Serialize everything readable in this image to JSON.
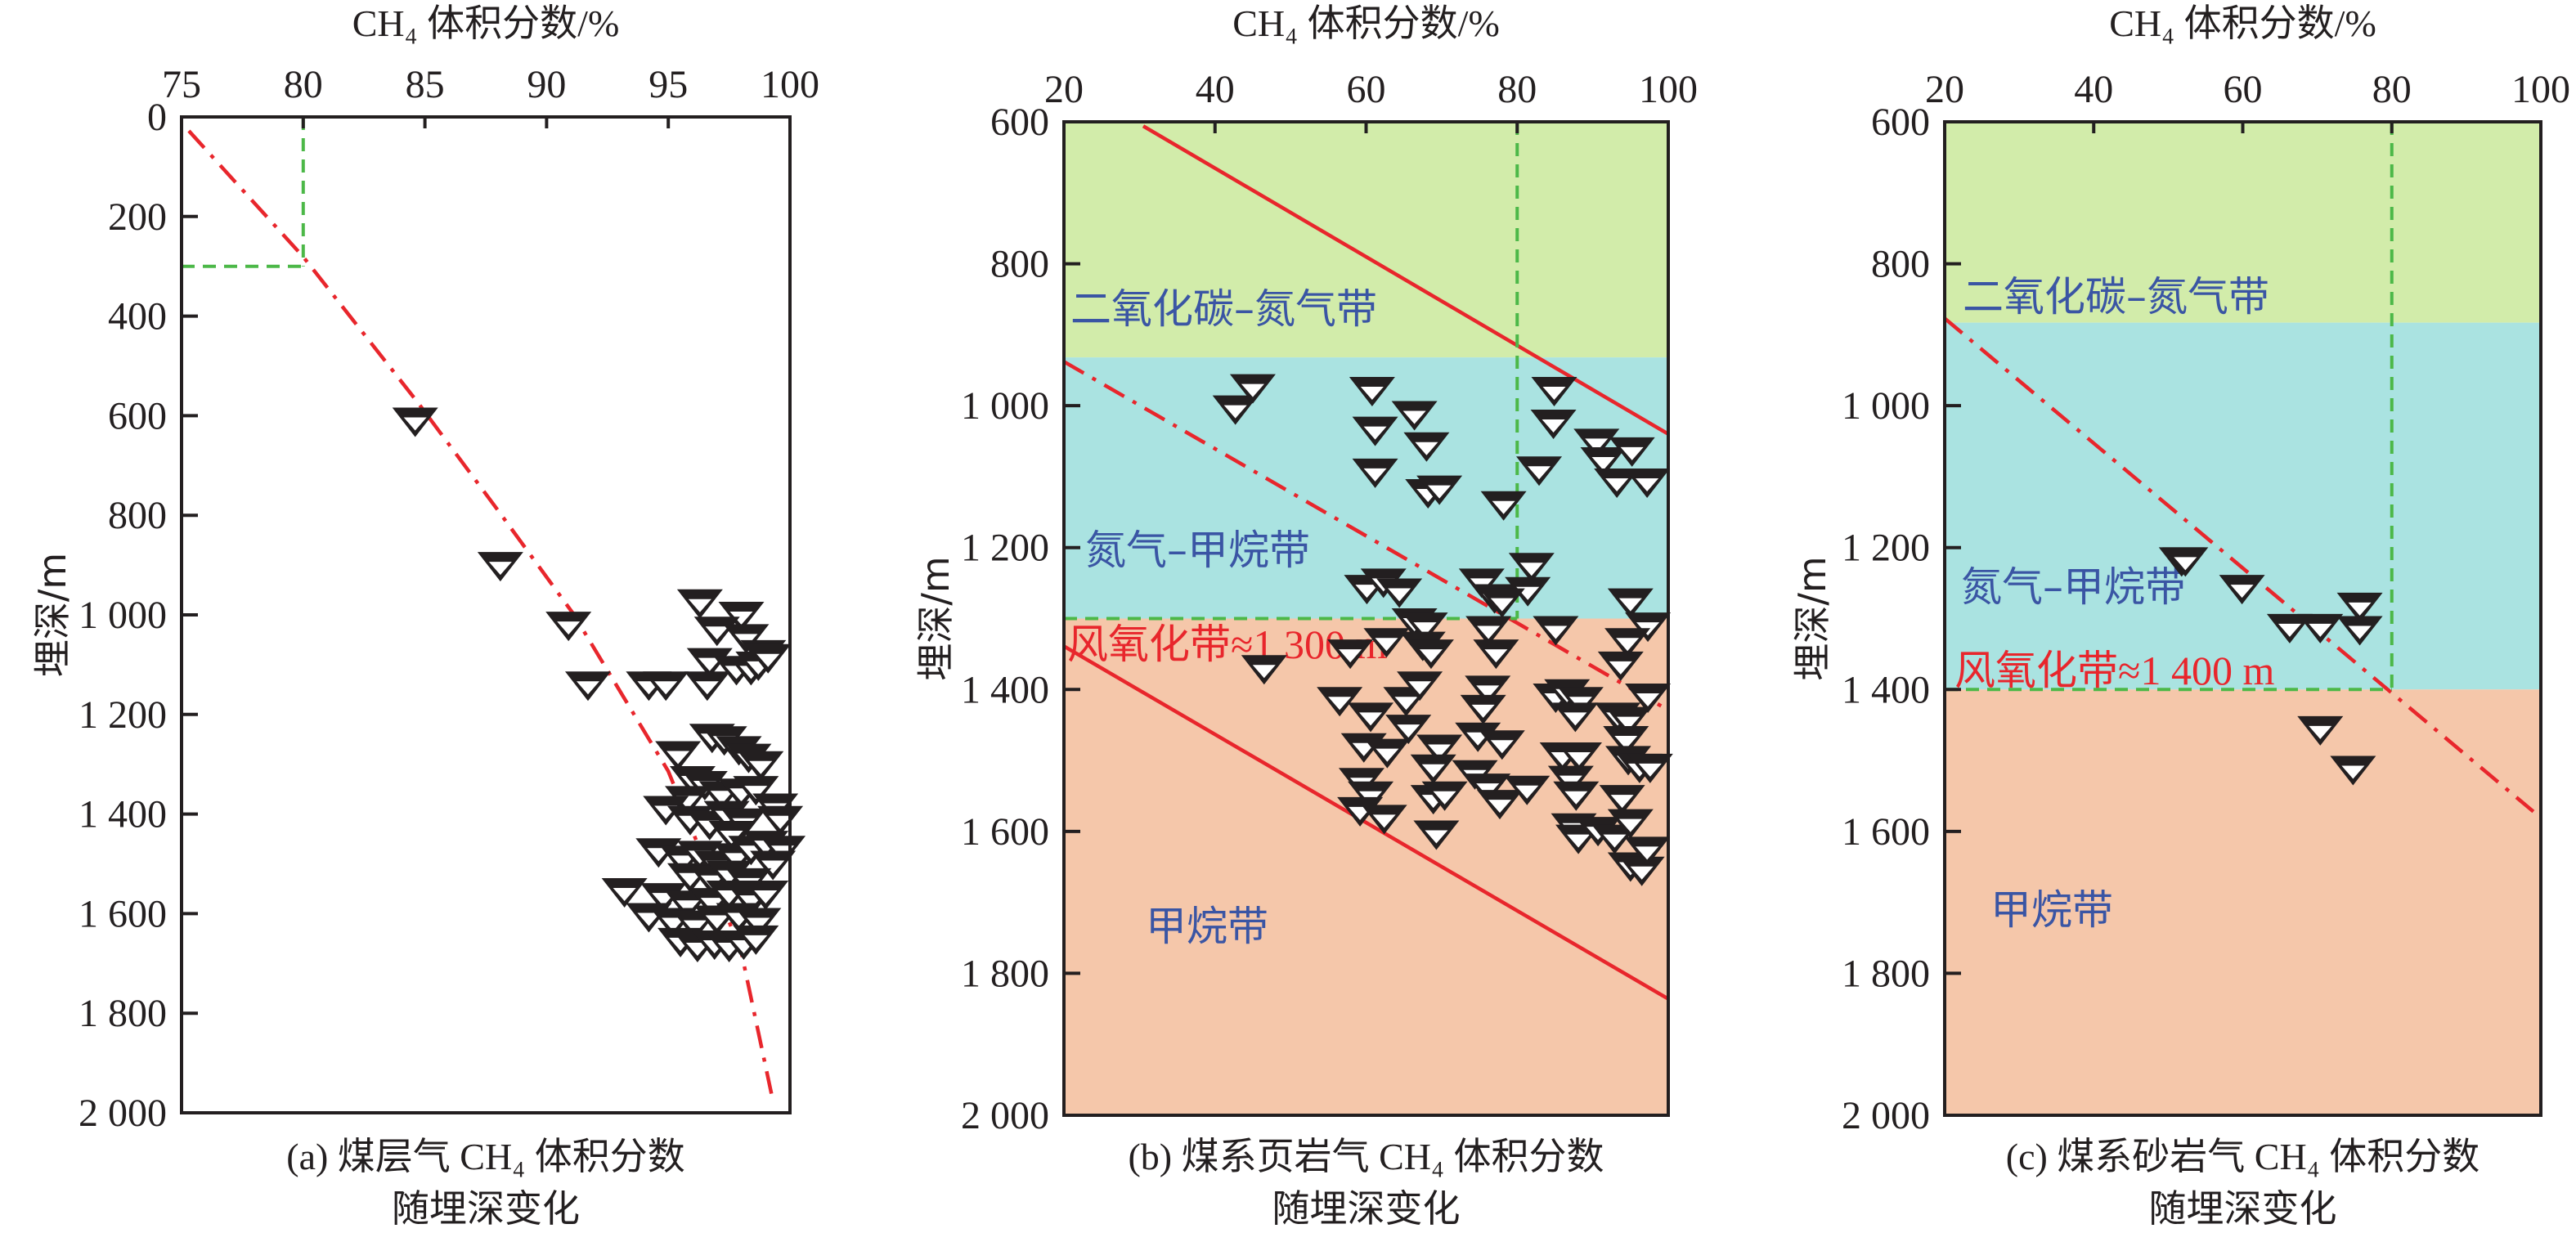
{
  "chart_data": [
    {
      "type": "scatter",
      "caption_line1": "(a) 煤层气 CH₄ 体积分数",
      "caption_line2": "随埋深变化",
      "xlabel": "CH₄ 体积分数/%",
      "ylabel": "埋深/m",
      "xlim": [
        75,
        100
      ],
      "ylim": [
        0,
        2000
      ],
      "y_reversed": true,
      "x_axis_position": "top",
      "xticks": [
        75,
        80,
        85,
        90,
        95,
        100
      ],
      "xtick_labels": [
        "75",
        "80",
        "85",
        "90",
        "95",
        "100"
      ],
      "yticks": [
        0,
        200,
        400,
        600,
        800,
        1000,
        1200,
        1400,
        1600,
        1800,
        2000
      ],
      "ytick_labels": [
        "0",
        "200",
        "400",
        "600",
        "800",
        "1 000",
        "1 200",
        "1 400",
        "1 600",
        "1 800",
        "2 000"
      ],
      "zones": [],
      "zone_labels": [],
      "reference_lines": [
        {
          "style": "dash-dot",
          "color": "#e8262c",
          "points": [
            [
              75.3,
              28
            ],
            [
              80,
              281
            ],
            [
              84.7,
              573
            ],
            [
              88,
              790
            ],
            [
              91.1,
              998
            ],
            [
              95.0,
              1314
            ],
            [
              98.0,
              1677
            ],
            [
              99.3,
              1976
            ]
          ]
        },
        {
          "style": "dashed",
          "color": "#4cb848",
          "points": [
            [
              80,
              0
            ],
            [
              80,
              300
            ]
          ]
        },
        {
          "style": "dashed",
          "color": "#4cb848",
          "points": [
            [
              75,
              300
            ],
            [
              80,
              300
            ]
          ]
        }
      ],
      "marker": "inverted-triangle",
      "points": [
        [
          84.6,
          610
        ],
        [
          88.1,
          900
        ],
        [
          90.9,
          1020
        ],
        [
          91.7,
          1140
        ],
        [
          94.2,
          1140
        ],
        [
          94.9,
          1140
        ],
        [
          96.3,
          975
        ],
        [
          98.0,
          1000
        ],
        [
          97.0,
          1030
        ],
        [
          98.2,
          1045
        ],
        [
          98.9,
          1077
        ],
        [
          96.7,
          1093
        ],
        [
          97.8,
          1109
        ],
        [
          98.4,
          1109
        ],
        [
          96.6,
          1140
        ],
        [
          98.7,
          1100
        ],
        [
          99.1,
          1085
        ],
        [
          96.8,
          1245
        ],
        [
          97.3,
          1250
        ],
        [
          97.9,
          1270
        ],
        [
          98.3,
          1285
        ],
        [
          98.8,
          1300
        ],
        [
          95.4,
          1280
        ],
        [
          96.0,
          1330
        ],
        [
          96.5,
          1340
        ],
        [
          95.8,
          1370
        ],
        [
          97.2,
          1360
        ],
        [
          98.0,
          1355
        ],
        [
          98.6,
          1350
        ],
        [
          94.9,
          1390
        ],
        [
          95.9,
          1410
        ],
        [
          96.7,
          1420
        ],
        [
          97.4,
          1400
        ],
        [
          98.1,
          1415
        ],
        [
          99.4,
          1385
        ],
        [
          99.6,
          1410
        ],
        [
          97.6,
          1440
        ],
        [
          94.6,
          1475
        ],
        [
          95.6,
          1490
        ],
        [
          96.3,
          1480
        ],
        [
          97.0,
          1500
        ],
        [
          97.8,
          1485
        ],
        [
          98.4,
          1470
        ],
        [
          99.0,
          1460
        ],
        [
          99.7,
          1470
        ],
        [
          99.3,
          1500
        ],
        [
          95.9,
          1525
        ],
        [
          96.8,
          1530
        ],
        [
          97.5,
          1520
        ],
        [
          98.3,
          1535
        ],
        [
          93.2,
          1555
        ],
        [
          94.8,
          1565
        ],
        [
          95.8,
          1580
        ],
        [
          96.8,
          1575
        ],
        [
          97.5,
          1560
        ],
        [
          98.4,
          1570
        ],
        [
          99.0,
          1560
        ],
        [
          94.2,
          1605
        ],
        [
          95.2,
          1615
        ],
        [
          96.1,
          1620
        ],
        [
          97.0,
          1610
        ],
        [
          97.9,
          1605
        ],
        [
          98.7,
          1615
        ],
        [
          95.5,
          1655
        ],
        [
          96.2,
          1665
        ],
        [
          96.9,
          1660
        ],
        [
          97.5,
          1665
        ],
        [
          98.1,
          1660
        ],
        [
          98.6,
          1650
        ]
      ]
    },
    {
      "type": "scatter",
      "caption_line1": "(b) 煤系页岩气 CH₄ 体积分数",
      "caption_line2": "随埋深变化",
      "xlabel": "CH₄ 体积分数/%",
      "ylabel": "埋深/m",
      "xlim": [
        20,
        100
      ],
      "ylim": [
        600,
        2000
      ],
      "y_reversed": true,
      "x_axis_position": "top",
      "xticks": [
        20,
        40,
        60,
        80,
        100
      ],
      "xtick_labels": [
        "20",
        "40",
        "60",
        "80",
        "100"
      ],
      "yticks": [
        600,
        800,
        1000,
        1200,
        1400,
        1600,
        1800,
        2000
      ],
      "ytick_labels": [
        "600",
        "800",
        "1 000",
        "1 200",
        "1 400",
        "1 600",
        "1 800",
        "2 000"
      ],
      "zones": [
        {
          "label": "二氧化碳–氮气带",
          "from": 600,
          "to": 932,
          "color": "#d2ecaa",
          "label_color": "#3a55a4"
        },
        {
          "label": "氮气–甲烷带",
          "from": 932,
          "to": 1300,
          "color": "#aae3e1",
          "label_color": "#3a55a4"
        },
        {
          "label": "甲烷带",
          "from": 1300,
          "to": 2000,
          "color": "#f5c7aa",
          "label_color": "#3a55a4"
        }
      ],
      "zone_labels": [
        {
          "text": "风氧化带≈1 300 m",
          "color": "#e8262c"
        }
      ],
      "reference_lines": [
        {
          "style": "solid",
          "color": "#e8262c",
          "points": [
            [
              30.5,
              606
            ],
            [
              100,
              1040
            ]
          ]
        },
        {
          "style": "dash-dot",
          "color": "#e8262c",
          "points": [
            [
              20,
              938
            ],
            [
              100,
              1429
            ]
          ]
        },
        {
          "style": "solid",
          "color": "#e8262c",
          "points": [
            [
              20,
              1339
            ],
            [
              100,
              1836
            ]
          ]
        },
        {
          "style": "dashed",
          "color": "#4cb848",
          "points": [
            [
              80,
              600
            ],
            [
              80,
              1300
            ]
          ]
        },
        {
          "style": "dashed",
          "color": "#4cb848",
          "points": [
            [
              20,
              1300
            ],
            [
              80,
              1300
            ]
          ]
        }
      ],
      "marker": "inverted-triangle",
      "points": [
        [
          42.7,
          1004
        ],
        [
          45.0,
          974
        ],
        [
          60.8,
          978
        ],
        [
          61.2,
          1034
        ],
        [
          61.2,
          1093
        ],
        [
          66.4,
          1012
        ],
        [
          68.0,
          1056
        ],
        [
          68.2,
          1122
        ],
        [
          69.7,
          1117
        ],
        [
          78.2,
          1139
        ],
        [
          84.9,
          978
        ],
        [
          84.8,
          1024
        ],
        [
          82.9,
          1090
        ],
        [
          90.5,
          1051
        ],
        [
          91.4,
          1077
        ],
        [
          93.2,
          1107
        ],
        [
          95.2,
          1063
        ],
        [
          97.2,
          1107
        ],
        [
          81.9,
          1226
        ],
        [
          81.4,
          1260
        ],
        [
          60.1,
          1257
        ],
        [
          62.3,
          1248
        ],
        [
          64.4,
          1262
        ],
        [
          75.3,
          1248
        ],
        [
          77.0,
          1270
        ],
        [
          78.0,
          1276
        ],
        [
          76.2,
          1315
        ],
        [
          77.2,
          1348
        ],
        [
          66.4,
          1304
        ],
        [
          67.8,
          1310
        ],
        [
          67.5,
          1337
        ],
        [
          68.6,
          1348
        ],
        [
          62.7,
          1332
        ],
        [
          57.9,
          1348
        ],
        [
          46.5,
          1370
        ],
        [
          85.1,
          1315
        ],
        [
          95.0,
          1276
        ],
        [
          97.3,
          1310
        ],
        [
          94.6,
          1332
        ],
        [
          93.7,
          1365
        ],
        [
          97.3,
          1410
        ],
        [
          56.5,
          1415
        ],
        [
          60.6,
          1437
        ],
        [
          65.3,
          1415
        ],
        [
          65.6,
          1454
        ],
        [
          67.1,
          1393
        ],
        [
          76.1,
          1399
        ],
        [
          75.5,
          1426
        ],
        [
          74.8,
          1465
        ],
        [
          78.0,
          1476
        ],
        [
          59.7,
          1480
        ],
        [
          62.8,
          1488
        ],
        [
          69.7,
          1482
        ],
        [
          68.9,
          1510
        ],
        [
          74.4,
          1518
        ],
        [
          76.1,
          1537
        ],
        [
          77.7,
          1560
        ],
        [
          81.3,
          1540
        ],
        [
          59.4,
          1529
        ],
        [
          60.6,
          1548
        ],
        [
          59.2,
          1570
        ],
        [
          62.4,
          1581
        ],
        [
          68.9,
          1553
        ],
        [
          70.4,
          1548
        ],
        [
          69.3,
          1603
        ],
        [
          85.1,
          1410
        ],
        [
          86.6,
          1404
        ],
        [
          88.4,
          1415
        ],
        [
          87.7,
          1437
        ],
        [
          86.0,
          1493
        ],
        [
          88.2,
          1493
        ],
        [
          87.1,
          1526
        ],
        [
          87.8,
          1548
        ],
        [
          87.5,
          1593
        ],
        [
          88.1,
          1609
        ],
        [
          90.7,
          1598
        ],
        [
          92.9,
          1609
        ],
        [
          93.3,
          1437
        ],
        [
          94.7,
          1443
        ],
        [
          94.4,
          1470
        ],
        [
          94.7,
          1498
        ],
        [
          96.2,
          1509
        ],
        [
          97.6,
          1509
        ],
        [
          93.9,
          1553
        ],
        [
          95.0,
          1587
        ],
        [
          95.0,
          1648
        ],
        [
          96.5,
          1654
        ],
        [
          97.2,
          1626
        ]
      ]
    },
    {
      "type": "scatter",
      "caption_line1": "(c) 煤系砂岩气 CH₄ 体积分数",
      "caption_line2": "随埋深变化",
      "xlabel": "CH₄ 体积分数/%",
      "ylabel": "埋深/m",
      "xlim": [
        20,
        100
      ],
      "ylim": [
        600,
        2000
      ],
      "y_reversed": true,
      "x_axis_position": "top",
      "xticks": [
        20,
        40,
        60,
        80,
        100
      ],
      "xtick_labels": [
        "20",
        "40",
        "60",
        "80",
        "100"
      ],
      "yticks": [
        600,
        800,
        1000,
        1200,
        1400,
        1600,
        1800,
        2000
      ],
      "ytick_labels": [
        "600",
        "800",
        "1 000",
        "1 200",
        "1 400",
        "1 600",
        "1 800",
        "2 000"
      ],
      "zones": [
        {
          "label": "二氧化碳–氮气带",
          "from": 600,
          "to": 883,
          "color": "#d2ecaa",
          "label_color": "#3a55a4"
        },
        {
          "label": "氮气–甲烷带",
          "from": 883,
          "to": 1400,
          "color": "#aae3e1",
          "label_color": "#3a55a4"
        },
        {
          "label": "甲烷带",
          "from": 1400,
          "to": 2000,
          "color": "#f5c7aa",
          "label_color": "#3a55a4"
        }
      ],
      "zone_labels": [
        {
          "text": "风氧化带≈1 400 m",
          "color": "#e8262c"
        }
      ],
      "reference_lines": [
        {
          "style": "dash-dot",
          "color": "#e8262c",
          "points": [
            [
              20,
              877
            ],
            [
              99,
              1572
            ]
          ]
        },
        {
          "style": "dashed",
          "color": "#4cb848",
          "points": [
            [
              80,
              600
            ],
            [
              80,
              1400
            ]
          ]
        },
        {
          "style": "dashed",
          "color": "#4cb848",
          "points": [
            [
              20,
              1400
            ],
            [
              80,
              1400
            ]
          ]
        }
      ],
      "marker": "inverted-triangle",
      "points": [
        [
          51.8,
          1218
        ],
        [
          52.3,
          1218
        ],
        [
          59.9,
          1257
        ],
        [
          66.3,
          1312
        ],
        [
          70.4,
          1312
        ],
        [
          75.7,
          1282
        ],
        [
          75.7,
          1315
        ],
        [
          70.4,
          1456
        ],
        [
          74.8,
          1512
        ]
      ]
    }
  ]
}
